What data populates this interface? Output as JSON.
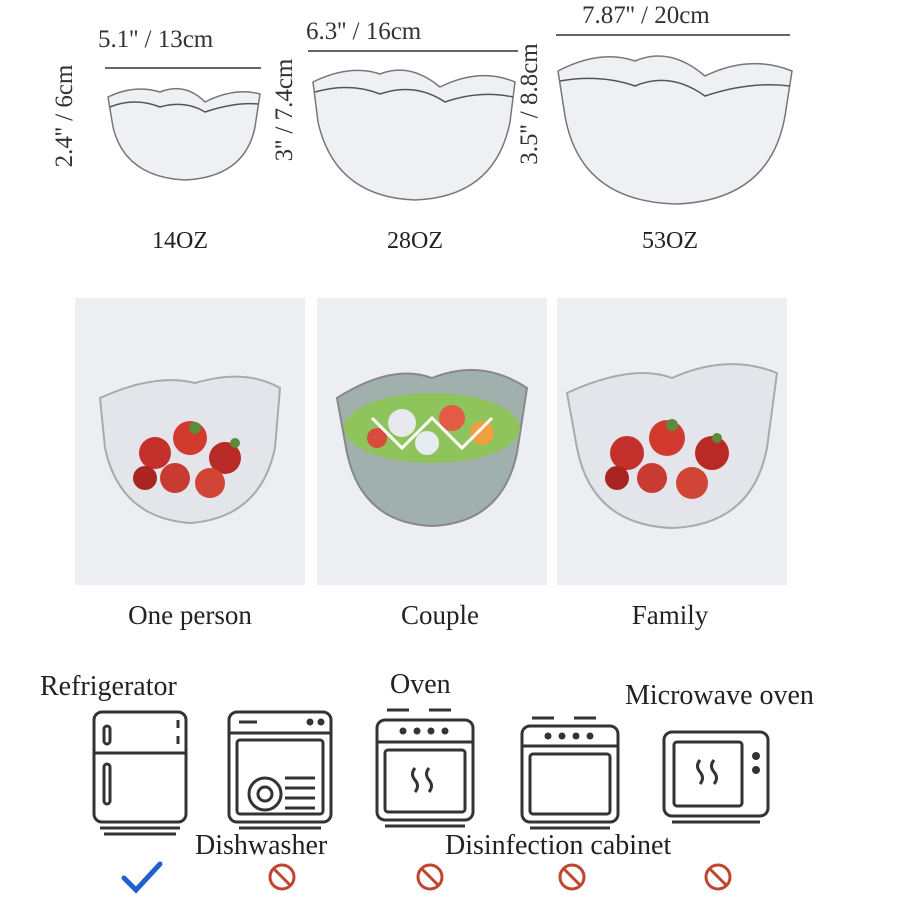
{
  "sizes": [
    {
      "width": "5.1'' / 13cm",
      "height": "2.4'' / 6cm",
      "capacity": "14OZ"
    },
    {
      "width": "6.3'' / 16cm",
      "height": "3'' / 7.4cm",
      "capacity": "28OZ"
    },
    {
      "width": "7.87'' / 20cm",
      "height": "3.5'' / 8.8cm",
      "capacity": "53OZ"
    }
  ],
  "usage": [
    {
      "caption": "One person",
      "contents": "strawberries"
    },
    {
      "caption": "Couple",
      "contents": "salad"
    },
    {
      "caption": "Family",
      "contents": "strawberries"
    }
  ],
  "appliances": [
    {
      "label": "Refrigerator",
      "icon": "refrigerator-icon",
      "status": "allowed",
      "status_icon": "checkmark-icon"
    },
    {
      "label": "Dishwasher",
      "icon": "dishwasher-icon",
      "status": "prohibited",
      "status_icon": "prohibited-icon"
    },
    {
      "label": "Oven",
      "icon": "oven-icon",
      "status": "prohibited",
      "status_icon": "prohibited-icon"
    },
    {
      "label": "Disinfection cabinet",
      "icon": "disinfection-cabinet-icon",
      "status": "prohibited",
      "status_icon": "prohibited-icon"
    },
    {
      "label": "Microwave oven",
      "icon": "microwave-icon",
      "status": "prohibited",
      "status_icon": "prohibited-icon"
    }
  ],
  "colors": {
    "check": "#1f5fd0",
    "prohibited": "#c0452e",
    "panel": "#eceef2"
  }
}
